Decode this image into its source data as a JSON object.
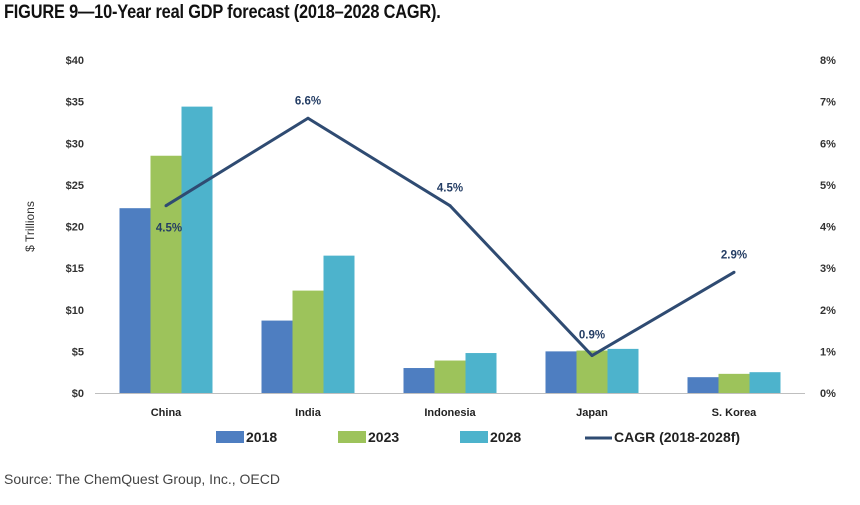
{
  "title": "FIGURE 9—10-Year real GDP forecast (2018–2028 CAGR).",
  "source": "Source: The ChemQuest Group, Inc., OECD",
  "chart_data": {
    "type": "bar",
    "categories": [
      "China",
      "India",
      "Indonesia",
      "Japan",
      "S. Korea"
    ],
    "series": [
      {
        "name": "2018",
        "values": [
          22.2,
          8.7,
          3.0,
          5.0,
          1.9
        ],
        "color": "#4e7ec1"
      },
      {
        "name": "2023",
        "values": [
          28.5,
          12.3,
          3.9,
          5.1,
          2.3
        ],
        "color": "#9dc35b"
      },
      {
        "name": "2028",
        "values": [
          34.4,
          16.5,
          4.8,
          5.3,
          2.5
        ],
        "color": "#4db3cc"
      }
    ],
    "line_series": {
      "name": "CAGR (2018-2028f)",
      "values": [
        4.5,
        6.6,
        4.5,
        0.9,
        2.9
      ],
      "labels": [
        "4.5%",
        "6.6%",
        "4.5%",
        "0.9%",
        "2.9%"
      ],
      "color": "#2f4b72",
      "axis": "secondary"
    },
    "ylabel": "$ Trillions",
    "ylim": [
      0,
      40
    ],
    "yticks": [
      0,
      5,
      10,
      15,
      20,
      25,
      30,
      35,
      40
    ],
    "ytick_labels": [
      "$0",
      "$5",
      "$10",
      "$15",
      "$20",
      "$25",
      "$30",
      "$35",
      "$40"
    ],
    "y2lim": [
      0,
      8
    ],
    "y2ticks": [
      0,
      1,
      2,
      3,
      4,
      5,
      6,
      7,
      8
    ],
    "y2tick_labels": [
      "0%",
      "1%",
      "2%",
      "3%",
      "4%",
      "5%",
      "6%",
      "7%",
      "8%"
    ],
    "legend_position": "bottom",
    "grid": false
  }
}
